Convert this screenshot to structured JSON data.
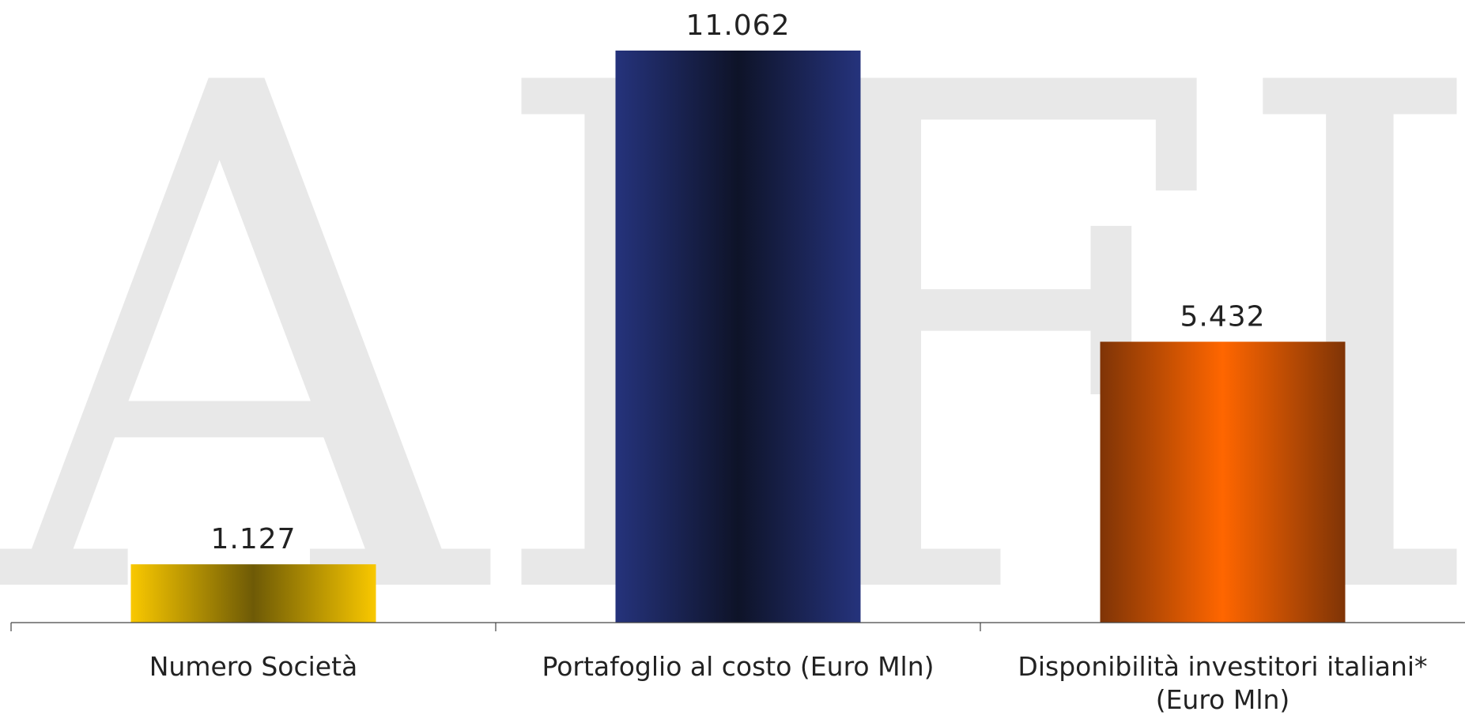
{
  "watermark": {
    "text": "AIFI",
    "color": "#e8e8e8"
  },
  "chart_data": {
    "type": "bar",
    "categories": [
      [
        "Numero Società"
      ],
      [
        "Portafoglio al costo (Euro Mln)"
      ],
      [
        "Disponibilità investitori italiani*",
        "(Euro Mln)"
      ]
    ],
    "values": [
      1127,
      11062,
      5432
    ],
    "value_labels": [
      "1.127",
      "11.062",
      "5.432"
    ],
    "ylim": [
      0,
      11062
    ],
    "grid": false,
    "bar_colors": [
      {
        "edge": "#f9c800",
        "center": "#6e5a06"
      },
      {
        "edge": "#25337c",
        "center": "#0e1328"
      },
      {
        "edge": "#7f3406",
        "center": "#ff6600"
      }
    ]
  }
}
